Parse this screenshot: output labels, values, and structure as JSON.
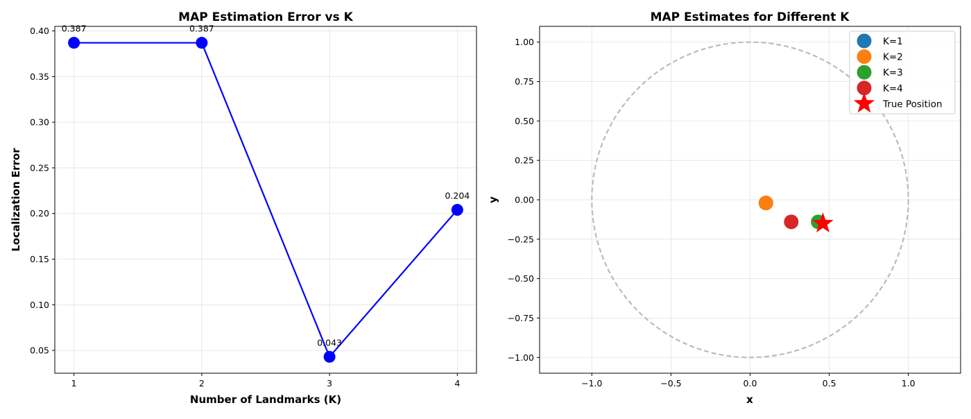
{
  "chart_data": [
    {
      "type": "line",
      "title": "MAP Estimation Error vs K",
      "xlabel": "Number of Landmarks (K)",
      "ylabel": "Localization Error",
      "x": [
        1,
        2,
        3,
        4
      ],
      "series": [
        {
          "values": [
            0.387,
            0.387,
            0.043,
            0.204
          ],
          "color": "#0000ff"
        }
      ],
      "annotations": [
        "0.387",
        "0.387",
        "0.043",
        "0.204"
      ],
      "xlim": [
        0.85,
        4.15
      ],
      "ylim": [
        0.025,
        0.405
      ],
      "xticks": [
        1,
        2,
        3,
        4
      ],
      "xtick_labels": [
        "1",
        "2",
        "3",
        "4"
      ],
      "yticks": [
        0.05,
        0.1,
        0.15,
        0.2,
        0.25,
        0.3,
        0.35,
        0.4
      ],
      "ytick_labels": [
        "0.05",
        "0.10",
        "0.15",
        "0.20",
        "0.25",
        "0.30",
        "0.35",
        "0.40"
      ],
      "grid": true
    },
    {
      "type": "scatter",
      "title": "MAP Estimates for Different K",
      "xlabel": "x",
      "ylabel": "y",
      "xlim": [
        -1.33,
        1.33
      ],
      "ylim": [
        -1.1,
        1.1
      ],
      "xticks": [
        -1.0,
        -0.5,
        0.0,
        0.5,
        1.0
      ],
      "xtick_labels": [
        "−1.0",
        "−0.5",
        "0.0",
        "0.5",
        "1.0"
      ],
      "yticks": [
        -1.0,
        -0.75,
        -0.5,
        -0.25,
        0.0,
        0.25,
        0.5,
        0.75,
        1.0
      ],
      "ytick_labels": [
        "−1.00",
        "−0.75",
        "−0.50",
        "−0.25",
        "0.00",
        "0.25",
        "0.50",
        "0.75",
        "1.00"
      ],
      "grid": true,
      "circle": {
        "center": [
          0,
          0
        ],
        "radius": 1.0,
        "color": "#bbbbbb",
        "style": "dashed"
      },
      "series": [
        {
          "name": "K=1",
          "x": 0.1,
          "y": -0.02,
          "color": "#1f77b4"
        },
        {
          "name": "K=2",
          "x": 0.1,
          "y": -0.02,
          "color": "#ff7f0e"
        },
        {
          "name": "K=3",
          "x": 0.43,
          "y": -0.14,
          "color": "#2ca02c"
        },
        {
          "name": "K=4",
          "x": 0.26,
          "y": -0.14,
          "color": "#d62728"
        },
        {
          "name": "True Position",
          "x": 0.46,
          "y": -0.15,
          "color": "#ff0000",
          "marker": "star"
        }
      ],
      "legend_position": "top-right"
    }
  ]
}
